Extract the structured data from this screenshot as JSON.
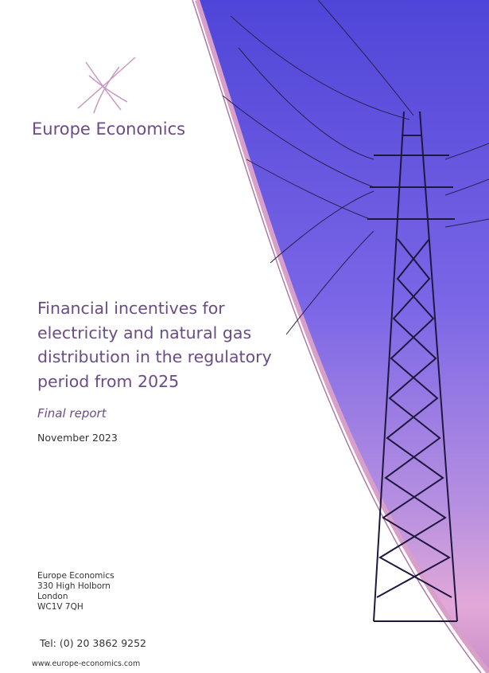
{
  "logo": {
    "name": "Europe Economics"
  },
  "title": {
    "lines": [
      "Financial incentives for",
      "electricity and natural gas",
      "distribution in the regulatory",
      "period from 2025"
    ]
  },
  "subtitle": "Final report",
  "date": "November 2023",
  "address": [
    "Europe Economics",
    "330 High Holborn",
    "London",
    "WC1V 7QH"
  ],
  "tel": "Tel: (0) 20 3862 9252",
  "website": "www.europe-economics.com"
}
